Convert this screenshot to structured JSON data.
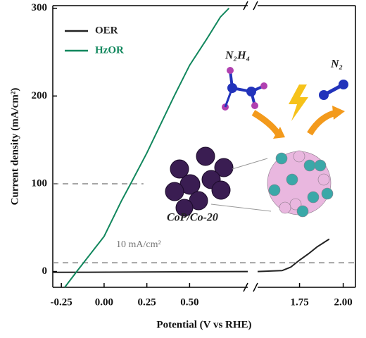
{
  "chart_data": {
    "type": "line",
    "x_label": "Potential (V vs RHE)",
    "y_label": "Current density (mA/cm²)",
    "x_segments": [
      {
        "xlim": [
          -0.3,
          0.84
        ],
        "xticks": [
          -0.25,
          {
            "value": 0,
            "label": "0.00"
          },
          0.25,
          {
            "value": 0.5,
            "label": "0.50"
          }
        ]
      },
      {
        "xlim": [
          1.51,
          2.07
        ],
        "xticks": [
          1.75,
          {
            "value": 2,
            "label": "2.00"
          }
        ]
      }
    ],
    "ylim": [
      -18,
      303
    ],
    "yticks": [
      0,
      100,
      200,
      300
    ],
    "legend": "top-left",
    "series": [
      {
        "name": "OER",
        "color": "#222222",
        "x": [
          -0.3,
          0.84,
          null,
          1.51,
          1.65,
          1.7,
          1.75,
          1.8,
          1.85,
          1.92
        ],
        "values": [
          -1,
          0,
          null,
          0,
          1,
          5,
          13,
          20,
          28,
          37
        ]
      },
      {
        "name": "HzOR",
        "color": "#11875d",
        "x": [
          -0.23,
          -0.16,
          -0.1,
          0,
          0.1,
          0.155,
          0.25,
          0.41,
          0.5,
          0.6,
          0.68,
          0.73
        ],
        "values": [
          -18,
          0,
          15,
          40,
          80,
          100,
          135,
          200,
          235,
          265,
          290,
          300
        ]
      }
    ],
    "reference_lines": [
      {
        "value": 100,
        "xmax": 0.23
      },
      {
        "value": 10
      }
    ],
    "annotations": [
      "10 mA/cm²",
      "N₂H₄",
      "N₂",
      "CoP/Co-20"
    ]
  }
}
